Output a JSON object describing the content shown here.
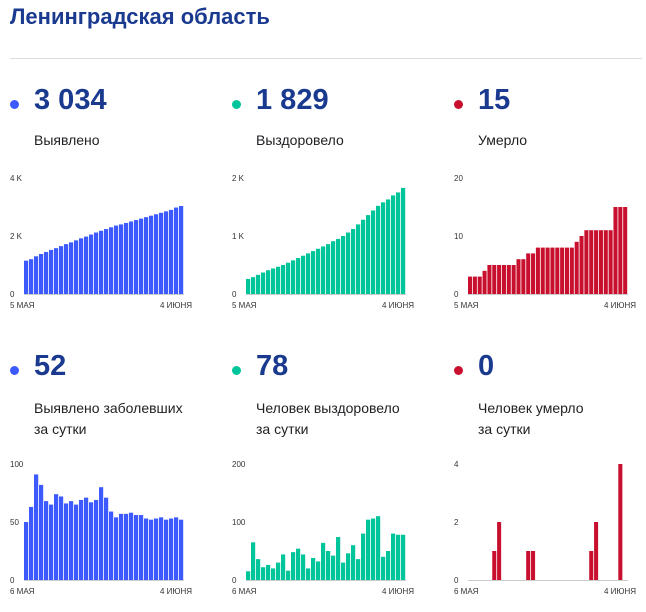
{
  "title": "Ленинградская область",
  "panels": [
    {
      "id": "p1",
      "color": "#3d5afe",
      "value": "3 034",
      "label_lines": [
        "Выявлено"
      ]
    },
    {
      "id": "p2",
      "color": "#00c49a",
      "value": "1 829",
      "label_lines": [
        "Выздоровело"
      ]
    },
    {
      "id": "p3",
      "color": "#c8102e",
      "value": "15",
      "label_lines": [
        "Умерло"
      ]
    },
    {
      "id": "p4",
      "color": "#3d5afe",
      "value": "52",
      "label_lines": [
        "Выявлено заболевших",
        "за сутки"
      ]
    },
    {
      "id": "p5",
      "color": "#00c49a",
      "value": "78",
      "label_lines": [
        "Человек выздоровело",
        "за сутки"
      ]
    },
    {
      "id": "p6",
      "color": "#c8102e",
      "value": "0",
      "label_lines": [
        "Человек умерло",
        "за сутки"
      ]
    }
  ],
  "chart_data": [
    {
      "type": "bar",
      "title": "Выявлено",
      "color": "#3d5afe",
      "x_labels": [
        "5 МАЯ",
        "4 ИЮНЯ"
      ],
      "y_ticks": [
        "0",
        "2 K",
        "4 K"
      ],
      "ylim": [
        0,
        4000
      ],
      "values": [
        1150,
        1200,
        1300,
        1380,
        1450,
        1520,
        1580,
        1650,
        1720,
        1780,
        1850,
        1920,
        1980,
        2050,
        2120,
        2180,
        2240,
        2300,
        2360,
        2400,
        2450,
        2500,
        2550,
        2600,
        2650,
        2700,
        2750,
        2800,
        2850,
        2900,
        2982,
        3034
      ]
    },
    {
      "type": "bar",
      "title": "Выздоровело",
      "color": "#00c49a",
      "x_labels": [
        "5 МАЯ",
        "4 ИЮНЯ"
      ],
      "y_ticks": [
        "0",
        "1 K",
        "2 K"
      ],
      "ylim": [
        0,
        2000
      ],
      "values": [
        260,
        290,
        330,
        370,
        410,
        440,
        470,
        500,
        540,
        580,
        620,
        660,
        700,
        740,
        780,
        820,
        860,
        910,
        950,
        1000,
        1060,
        1120,
        1200,
        1280,
        1360,
        1440,
        1520,
        1580,
        1630,
        1700,
        1751,
        1829
      ]
    },
    {
      "type": "bar",
      "title": "Умерло",
      "color": "#c8102e",
      "x_labels": [
        "5 МАЯ",
        "4 ИЮНЯ"
      ],
      "y_ticks": [
        "0",
        "10",
        "20"
      ],
      "ylim": [
        0,
        20
      ],
      "values": [
        3,
        3,
        3,
        4,
        5,
        5,
        5,
        5,
        5,
        5,
        6,
        6,
        7,
        7,
        8,
        8,
        8,
        8,
        8,
        8,
        8,
        8,
        9,
        10,
        11,
        11,
        11,
        11,
        11,
        11,
        15,
        15,
        15
      ]
    },
    {
      "type": "bar",
      "title": "Выявлено заболевших за сутки",
      "color": "#3d5afe",
      "x_labels": [
        "6 МАЯ",
        "4 ИЮНЯ"
      ],
      "y_ticks": [
        "0",
        "50",
        "100"
      ],
      "ylim": [
        0,
        100
      ],
      "values": [
        50,
        63,
        91,
        82,
        68,
        65,
        74,
        72,
        66,
        68,
        65,
        69,
        71,
        67,
        69,
        80,
        71,
        59,
        54,
        57,
        57,
        58,
        56,
        56,
        53,
        52,
        53,
        54,
        52,
        53,
        54,
        52
      ]
    },
    {
      "type": "bar",
      "title": "Человек выздоровело за сутки",
      "color": "#00c49a",
      "x_labels": [
        "6 МАЯ",
        "4 ИЮНЯ"
      ],
      "y_ticks": [
        "0",
        "100",
        "200"
      ],
      "ylim": [
        0,
        200
      ],
      "values": [
        15,
        65,
        36,
        22,
        26,
        20,
        30,
        44,
        16,
        48,
        54,
        44,
        20,
        38,
        32,
        64,
        50,
        42,
        74,
        30,
        46,
        60,
        36,
        80,
        104,
        106,
        110,
        40,
        50,
        80,
        78,
        78
      ]
    },
    {
      "type": "bar",
      "title": "Человек умерло за сутки",
      "color": "#c8102e",
      "x_labels": [
        "6 МАЯ",
        "4 ИЮНЯ"
      ],
      "y_ticks": [
        "0",
        "2",
        "4"
      ],
      "ylim": [
        0,
        4
      ],
      "values": [
        0,
        0,
        0,
        0,
        0,
        1,
        2,
        0,
        0,
        0,
        0,
        0,
        1,
        1,
        0,
        0,
        0,
        0,
        0,
        0,
        0,
        0,
        0,
        0,
        0,
        1,
        2,
        0,
        0,
        0,
        0,
        4,
        0
      ]
    }
  ]
}
